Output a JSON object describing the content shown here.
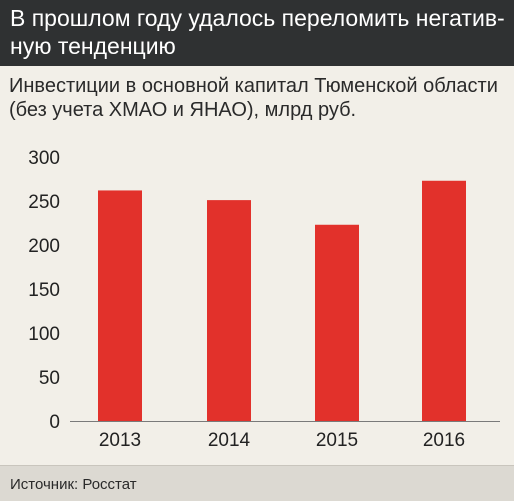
{
  "header": {
    "title": "В прошлом году удалось переломить негатив- ную тенденцию"
  },
  "subtitle": "Инвестиции в основной капитал Тюменской области (без учета ХМАО и ЯНАО), млрд руб.",
  "source": "Источник: Росстат",
  "colors": {
    "bar": "#e2312b",
    "header_bg": "#2f3132",
    "background": "#f2efe8"
  },
  "chart_data": {
    "type": "bar",
    "categories": [
      "2013",
      "2014",
      "2015",
      "2016"
    ],
    "values": [
      262,
      251,
      223,
      273
    ],
    "ylim": [
      0,
      300
    ],
    "yticks": [
      0,
      50,
      100,
      150,
      200,
      250,
      300
    ],
    "grid": false,
    "legend": "none"
  }
}
